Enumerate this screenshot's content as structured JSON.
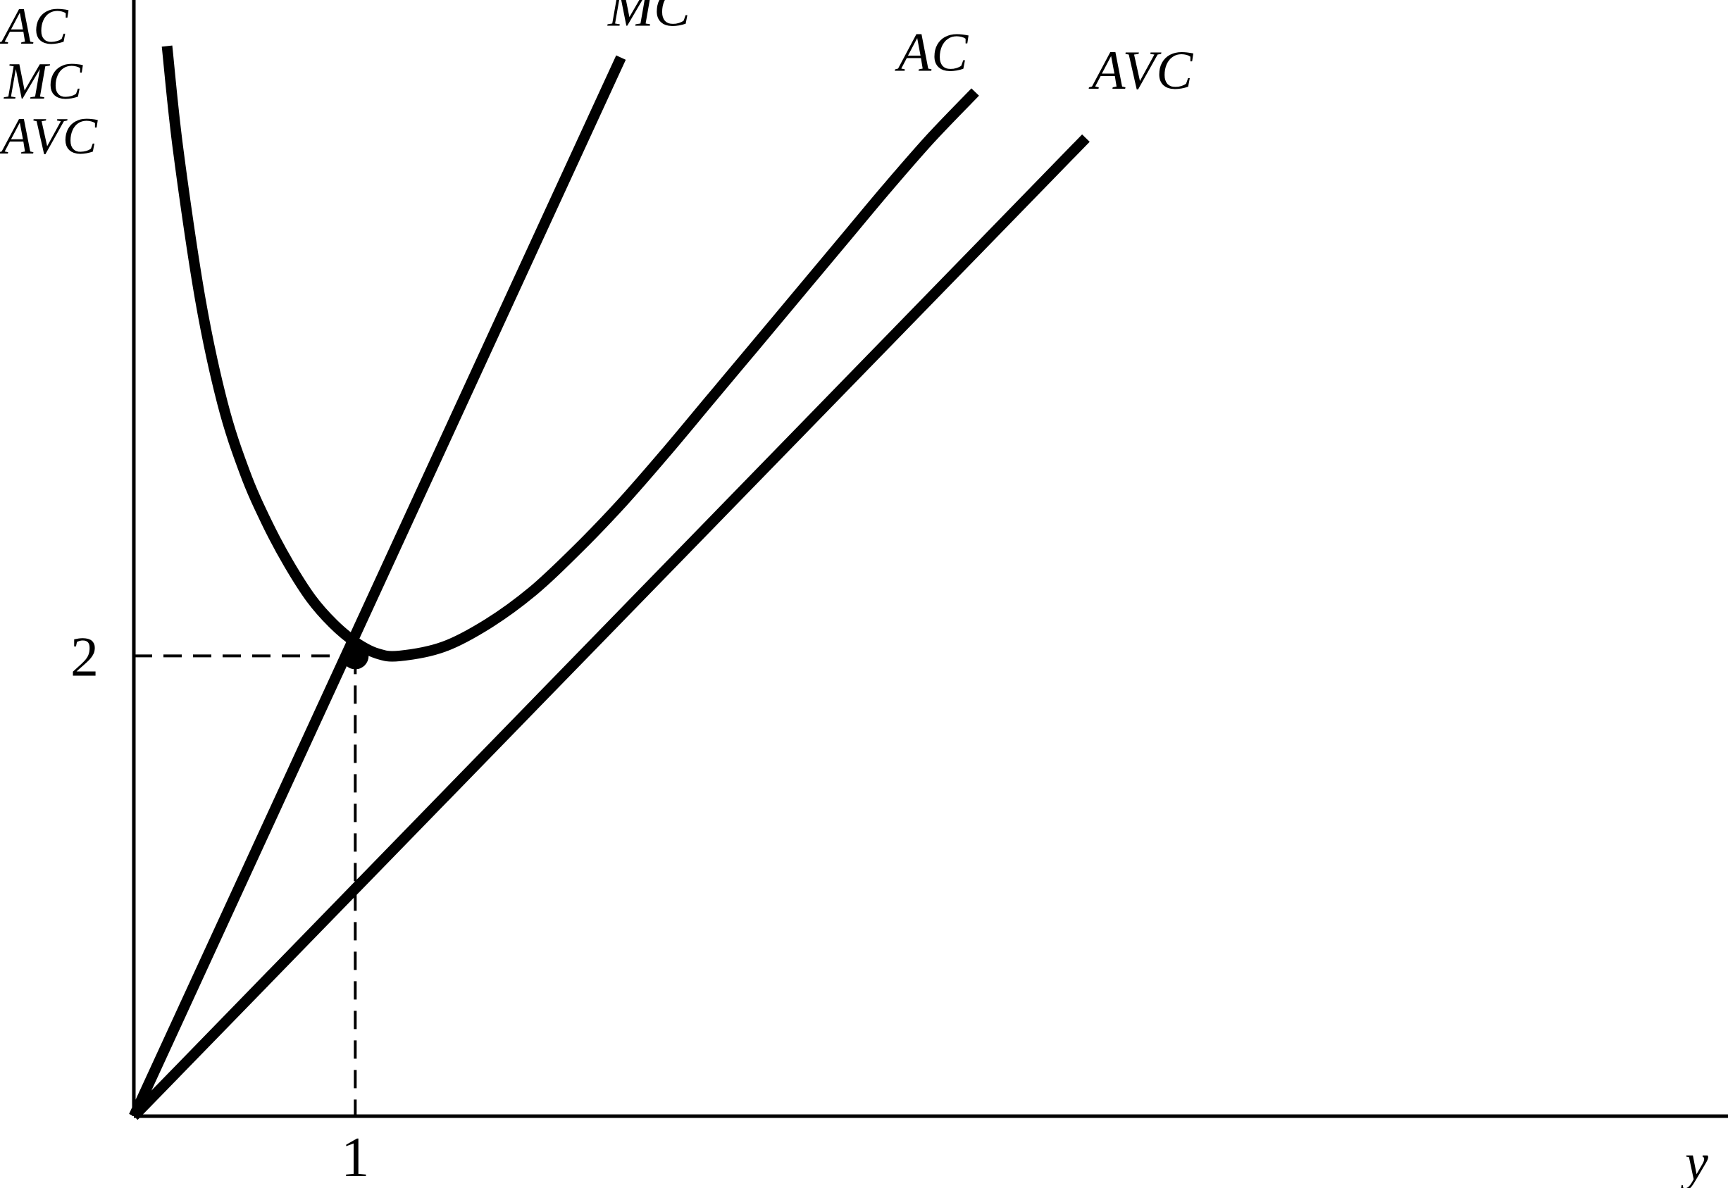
{
  "chart_data": {
    "type": "line",
    "title": "",
    "xlabel": "y",
    "ylabel_lines": [
      "AC",
      "MC",
      "AVC"
    ],
    "xlim": [
      0,
      7.2
    ],
    "ylim": [
      0,
      4.85
    ],
    "x_ticks": [
      {
        "value": 1,
        "label": "1"
      }
    ],
    "y_ticks": [
      {
        "value": 2,
        "label": "2"
      }
    ],
    "grid": false,
    "legend": "none",
    "series": [
      {
        "name": "MC",
        "color": "#000000",
        "x": [
          0,
          2.2
        ],
        "y": [
          0,
          4.6
        ]
      },
      {
        "name": "AC",
        "color": "#000000",
        "x": [
          0.15,
          0.2,
          0.3,
          0.4,
          0.5,
          0.6,
          0.7,
          0.8,
          0.9,
          1.0,
          1.1,
          1.2,
          1.4,
          1.6,
          1.8,
          2.0,
          2.2,
          2.4,
          2.6,
          2.8,
          3.0,
          3.2,
          3.4,
          3.6,
          3.8
        ],
        "y": [
          4.65,
          4.2,
          3.55,
          3.1,
          2.8,
          2.58,
          2.4,
          2.25,
          2.14,
          2.06,
          2.01,
          2.0,
          2.04,
          2.14,
          2.28,
          2.46,
          2.66,
          2.88,
          3.11,
          3.34,
          3.57,
          3.8,
          4.03,
          4.25,
          4.45
        ]
      },
      {
        "name": "AVC",
        "color": "#000000",
        "x": [
          0,
          4.3
        ],
        "y": [
          0,
          4.25
        ]
      }
    ],
    "annotations": [
      {
        "type": "point",
        "x": 1,
        "y": 2
      },
      {
        "type": "dashed-guide",
        "x": 1,
        "y": 2
      }
    ]
  }
}
